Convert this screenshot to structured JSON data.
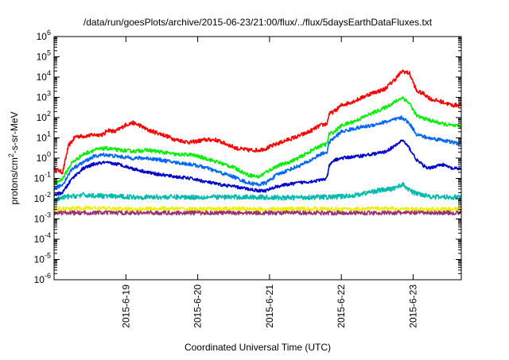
{
  "chart_data": {
    "type": "line",
    "title": "/data/run/goesPlots/archive/2015-06-23/21:00/flux/../flux/5daysEarthDataFluxes.txt",
    "xlabel": "Coordinated Universal Time (UTC)",
    "ylabel_main": "protons/cm",
    "ylabel_sup": "2",
    "ylabel_rest": "-s-sr-MeV",
    "y_scale": "log",
    "ylim": [
      1e-06,
      1000000.0
    ],
    "y_ticks": [
      {
        "base": "10",
        "exp": "-6",
        "v": -6
      },
      {
        "base": "10",
        "exp": "-5",
        "v": -5
      },
      {
        "base": "10",
        "exp": "-4",
        "v": -4
      },
      {
        "base": "10",
        "exp": "-3",
        "v": -3
      },
      {
        "base": "10",
        "exp": "-2",
        "v": -2
      },
      {
        "base": "10",
        "exp": "-1",
        "v": -1
      },
      {
        "base": "10",
        "exp": "0",
        "v": 0
      },
      {
        "base": "10",
        "exp": "1",
        "v": 1
      },
      {
        "base": "10",
        "exp": "2",
        "v": 2
      },
      {
        "base": "10",
        "exp": "3",
        "v": 3
      },
      {
        "base": "10",
        "exp": "4",
        "v": 4
      },
      {
        "base": "10",
        "exp": "5",
        "v": 5
      },
      {
        "base": "10",
        "exp": "6",
        "v": 6
      }
    ],
    "xlim": [
      0,
      5.67
    ],
    "x_ticks": [
      {
        "label": "2015-6-19",
        "v": 1
      },
      {
        "label": "2015-6-20",
        "v": 2
      },
      {
        "label": "2015-6-21",
        "v": 3
      },
      {
        "label": "2015-6-22",
        "v": 4
      },
      {
        "label": "2015-6-23",
        "v": 5
      }
    ],
    "grid": false,
    "legend": "none",
    "series": [
      {
        "color": "#ff0000",
        "x": [
          0.0,
          0.12,
          0.2,
          0.3,
          0.4,
          0.55,
          0.7,
          0.74,
          0.85,
          1.0,
          1.1,
          1.2,
          1.3,
          1.5,
          1.7,
          1.9,
          2.1,
          2.25,
          2.4,
          2.55,
          2.7,
          2.85,
          2.95,
          3.1,
          3.25,
          3.4,
          3.55,
          3.7,
          3.8,
          3.83,
          3.9,
          4.0,
          4.2,
          4.4,
          4.6,
          4.75,
          4.85,
          4.95,
          5.05,
          5.15,
          5.25,
          5.4,
          5.55,
          5.67
        ],
        "y": [
          0.3,
          0.2,
          4,
          12,
          12,
          14,
          15,
          25,
          20,
          45,
          55,
          40,
          25,
          15,
          8,
          6,
          8,
          8,
          5,
          3,
          2.5,
          2.5,
          3,
          5,
          8,
          12,
          20,
          40,
          50,
          150,
          200,
          400,
          700,
          1500,
          2500,
          8000,
          20000,
          15000,
          2000,
          1500,
          800,
          600,
          400,
          450
        ]
      },
      {
        "color": "#00ee00",
        "x": [
          0.0,
          0.12,
          0.25,
          0.4,
          0.55,
          0.7,
          0.74,
          0.9,
          1.1,
          1.3,
          1.5,
          1.7,
          1.9,
          2.1,
          2.3,
          2.5,
          2.7,
          2.85,
          2.95,
          3.1,
          3.25,
          3.4,
          3.55,
          3.7,
          3.8,
          3.83,
          3.9,
          4.0,
          4.2,
          4.4,
          4.6,
          4.75,
          4.85,
          4.95,
          5.05,
          5.2,
          5.4,
          5.55,
          5.67
        ],
        "y": [
          0.05,
          0.1,
          0.6,
          1.5,
          2.5,
          3,
          3,
          2.5,
          2.2,
          2.5,
          2,
          1.5,
          1.5,
          1,
          0.6,
          0.35,
          0.15,
          0.12,
          0.2,
          0.4,
          0.6,
          1,
          2,
          4,
          5,
          15,
          20,
          40,
          70,
          150,
          300,
          600,
          1000,
          500,
          120,
          80,
          50,
          40,
          35
        ]
      },
      {
        "color": "#0066ff",
        "x": [
          0.0,
          0.12,
          0.25,
          0.4,
          0.55,
          0.7,
          0.9,
          1.1,
          1.3,
          1.5,
          1.7,
          1.9,
          2.1,
          2.3,
          2.5,
          2.7,
          2.85,
          2.95,
          3.1,
          3.25,
          3.4,
          3.55,
          3.7,
          3.8,
          3.83,
          3.9,
          4.0,
          4.2,
          4.4,
          4.6,
          4.75,
          4.85,
          4.95,
          5.05,
          5.2,
          5.4,
          5.55,
          5.67
        ],
        "y": [
          0.03,
          0.05,
          0.3,
          0.6,
          1.2,
          1.5,
          1.2,
          1.0,
          1.0,
          0.8,
          0.6,
          0.5,
          0.35,
          0.2,
          0.12,
          0.06,
          0.05,
          0.06,
          0.15,
          0.25,
          0.4,
          0.7,
          1.5,
          2,
          6,
          10,
          20,
          30,
          40,
          60,
          80,
          100,
          50,
          15,
          10,
          8,
          6,
          5
        ]
      },
      {
        "color": "#0000cc",
        "x": [
          0.0,
          0.12,
          0.25,
          0.4,
          0.55,
          0.7,
          0.9,
          1.1,
          1.3,
          1.5,
          1.7,
          1.9,
          2.1,
          2.3,
          2.5,
          2.7,
          2.85,
          2.95,
          3.1,
          3.25,
          3.4,
          3.55,
          3.7,
          3.8,
          3.83,
          3.9,
          4.0,
          4.2,
          4.4,
          4.6,
          4.75,
          4.85,
          4.95,
          5.05,
          5.2,
          5.4,
          5.55,
          5.67
        ],
        "y": [
          0.015,
          0.02,
          0.1,
          0.3,
          0.5,
          0.6,
          0.5,
          0.3,
          0.2,
          0.15,
          0.12,
          0.1,
          0.07,
          0.05,
          0.04,
          0.03,
          0.025,
          0.025,
          0.04,
          0.05,
          0.06,
          0.07,
          0.08,
          0.1,
          0.4,
          0.8,
          1,
          1.2,
          1.5,
          2,
          4,
          8,
          3,
          0.8,
          0.3,
          0.5,
          0.3,
          0.3
        ]
      },
      {
        "color": "#00bbaa",
        "x": [
          0.0,
          0.15,
          0.4,
          0.8,
          1.2,
          1.6,
          2.0,
          2.4,
          2.8,
          3.2,
          3.6,
          3.9,
          4.2,
          4.5,
          4.7,
          4.85,
          5.0,
          5.3,
          5.67
        ],
        "y": [
          0.008,
          0.012,
          0.015,
          0.013,
          0.012,
          0.012,
          0.012,
          0.012,
          0.012,
          0.011,
          0.012,
          0.012,
          0.015,
          0.025,
          0.03,
          0.05,
          0.02,
          0.012,
          0.012
        ]
      },
      {
        "color": "#eeee00",
        "x": [
          0.0,
          0.5,
          1.0,
          1.5,
          2.0,
          2.5,
          3.0,
          3.5,
          4.0,
          4.5,
          5.0,
          5.67
        ],
        "y": [
          0.003,
          0.0035,
          0.003,
          0.0033,
          0.003,
          0.0032,
          0.003,
          0.0032,
          0.003,
          0.0033,
          0.003,
          0.003
        ]
      },
      {
        "color": "#993377",
        "x": [
          0.0,
          0.5,
          1.0,
          1.5,
          2.0,
          2.5,
          3.0,
          3.5,
          4.0,
          4.5,
          5.0,
          5.67
        ],
        "y": [
          0.002,
          0.002,
          0.002,
          0.002,
          0.002,
          0.002,
          0.002,
          0.002,
          0.002,
          0.002,
          0.002,
          0.002
        ]
      }
    ]
  }
}
